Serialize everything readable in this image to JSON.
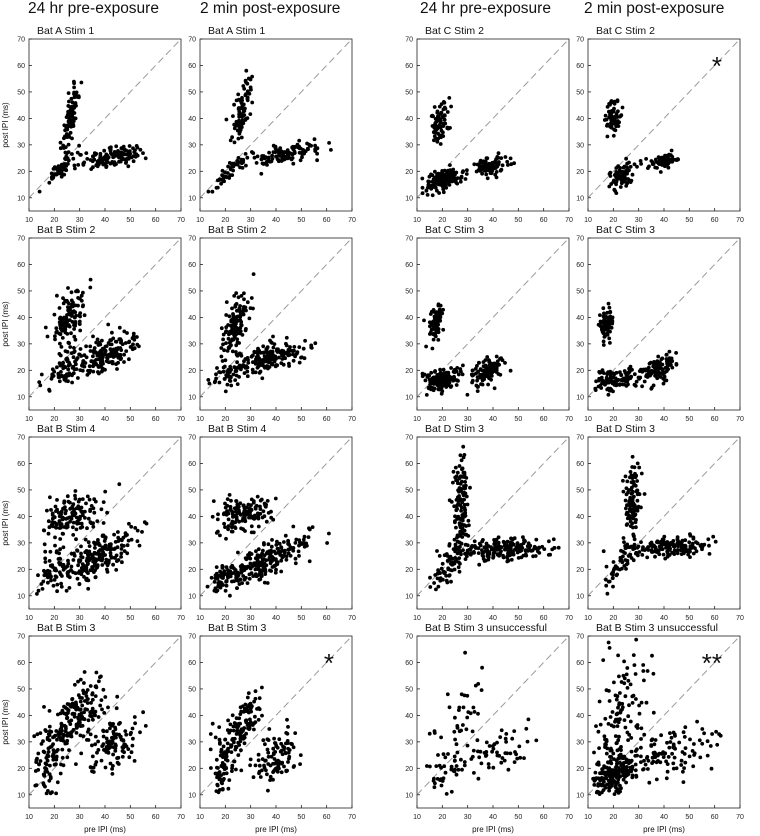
{
  "column_headers": [
    "24 hr pre-exposure",
    "2 min post-exposure",
    "24 hr pre-exposure",
    "2 min post-exposure"
  ],
  "axis_text": {
    "xlabel": "pre IPI (ms)",
    "ylabel": "post IPI (ms)"
  },
  "chart_data": {
    "type": "scatter",
    "xlim": [
      10,
      70
    ],
    "ylim": [
      5,
      70
    ],
    "xticks": [
      10,
      20,
      30,
      40,
      50,
      60,
      70
    ],
    "yticks": [
      10,
      20,
      30,
      40,
      50,
      60,
      70
    ],
    "identity_line": "dashed diagonal y = x",
    "point_color": "#000000",
    "panels": [
      {
        "title": "Bat A  Stim 1",
        "annotation": "",
        "clusters": [
          {
            "n": 95,
            "cx": 26.5,
            "cy": 40,
            "sx": 1.6,
            "sy": 7,
            "rho": 0.8
          },
          {
            "n": 50,
            "cx": 22,
            "cy": 21,
            "sx": 3.5,
            "sy": 3.5,
            "rho": 0.9
          },
          {
            "n": 140,
            "cx": 43,
            "cy": 25.5,
            "sx": 6.5,
            "sy": 2.2,
            "rho": 0.5
          }
        ]
      },
      {
        "title": "Bat A  Stim 1",
        "annotation": "",
        "clusters": [
          {
            "n": 90,
            "cx": 26,
            "cy": 40,
            "sx": 2.0,
            "sy": 7,
            "rho": 0.7
          },
          {
            "n": 45,
            "cx": 22,
            "cy": 20,
            "sx": 3.5,
            "sy": 3.5,
            "rho": 0.9
          },
          {
            "n": 120,
            "cx": 43,
            "cy": 26.5,
            "sx": 7,
            "sy": 2.2,
            "rho": 0.5
          }
        ]
      },
      {
        "title": "Bat C  Stim 2",
        "annotation": "",
        "clusters": [
          {
            "n": 75,
            "cx": 19,
            "cy": 38.5,
            "sx": 1.8,
            "sy": 3.8,
            "rho": 0.3
          },
          {
            "n": 160,
            "cx": 20,
            "cy": 16.5,
            "sx": 4,
            "sy": 2.3,
            "rho": 0.5
          },
          {
            "n": 90,
            "cx": 39,
            "cy": 22,
            "sx": 3.8,
            "sy": 1.8,
            "rho": 0.3
          }
        ]
      },
      {
        "title": "Bat C  Stim 2",
        "annotation": "*",
        "clusters": [
          {
            "n": 60,
            "cx": 20,
            "cy": 40,
            "sx": 1.7,
            "sy": 3.2,
            "rho": 0.2
          },
          {
            "n": 80,
            "cx": 23,
            "cy": 18.5,
            "sx": 2.6,
            "sy": 2.5,
            "rho": 0.4
          },
          {
            "n": 70,
            "cx": 40,
            "cy": 24,
            "sx": 3.2,
            "sy": 1.5,
            "rho": 0.3
          }
        ]
      },
      {
        "title": "Bat B  Stim 2",
        "annotation": "",
        "clusters": [
          {
            "n": 120,
            "cx": 26,
            "cy": 39.5,
            "sx": 3.5,
            "sy": 5.5,
            "rho": 0.6
          },
          {
            "n": 60,
            "cx": 24,
            "cy": 20,
            "sx": 4,
            "sy": 4,
            "rho": 0.5
          },
          {
            "n": 170,
            "cx": 40,
            "cy": 26,
            "sx": 7,
            "sy": 4,
            "rho": 0.6
          }
        ]
      },
      {
        "title": "Bat B  Stim 2",
        "annotation": "",
        "clusters": [
          {
            "n": 120,
            "cx": 23.5,
            "cy": 36,
            "sx": 2.6,
            "sy": 6,
            "rho": 0.6
          },
          {
            "n": 60,
            "cx": 22,
            "cy": 19,
            "sx": 3.5,
            "sy": 3,
            "rho": 0.4
          },
          {
            "n": 150,
            "cx": 38,
            "cy": 25,
            "sx": 6,
            "sy": 3,
            "rho": 0.5
          }
        ]
      },
      {
        "title": "Bat C  Stim 3",
        "annotation": "",
        "clusters": [
          {
            "n": 80,
            "cx": 17.5,
            "cy": 38,
            "sx": 1.4,
            "sy": 3.5,
            "rho": 0.3
          },
          {
            "n": 160,
            "cx": 19,
            "cy": 16.5,
            "sx": 3.8,
            "sy": 2.0,
            "rho": 0.3
          },
          {
            "n": 110,
            "cx": 38,
            "cy": 19.5,
            "sx": 3.2,
            "sy": 2.8,
            "rho": 0.4
          }
        ]
      },
      {
        "title": "Bat C  Stim 3",
        "annotation": "",
        "clusters": [
          {
            "n": 70,
            "cx": 17,
            "cy": 37,
            "sx": 1.4,
            "sy": 3.0,
            "rho": 0.3
          },
          {
            "n": 120,
            "cx": 21,
            "cy": 16.5,
            "sx": 4.5,
            "sy": 2.0,
            "rho": 0.3
          },
          {
            "n": 100,
            "cx": 38,
            "cy": 20,
            "sx": 3.5,
            "sy": 3.0,
            "rho": 0.4
          }
        ]
      },
      {
        "title": "Bat B  Stim 4",
        "annotation": "",
        "clusters": [
          {
            "n": 140,
            "cx": 27,
            "cy": 40,
            "sx": 6.5,
            "sy": 4,
            "rho": 0.4
          },
          {
            "n": 70,
            "cx": 20,
            "cy": 20,
            "sx": 4,
            "sy": 4,
            "rho": 0.5
          },
          {
            "n": 200,
            "cx": 38,
            "cy": 25,
            "sx": 7,
            "sy": 5.5,
            "rho": 0.7
          }
        ]
      },
      {
        "title": "Bat B  Stim 4",
        "annotation": "",
        "clusters": [
          {
            "n": 140,
            "cx": 28,
            "cy": 41,
            "sx": 6.5,
            "sy": 3.5,
            "rho": 0.3
          },
          {
            "n": 60,
            "cx": 19,
            "cy": 17,
            "sx": 3,
            "sy": 3,
            "rho": 0.6
          },
          {
            "n": 220,
            "cx": 36,
            "cy": 23,
            "sx": 8,
            "sy": 5,
            "rho": 0.75
          }
        ]
      },
      {
        "title": "Bat D  Stim 3",
        "annotation": "",
        "clusters": [
          {
            "n": 130,
            "cx": 27.5,
            "cy": 44,
            "sx": 1.5,
            "sy": 10,
            "rho": 0.2
          },
          {
            "n": 60,
            "cx": 22,
            "cy": 20,
            "sx": 3.5,
            "sy": 4,
            "rho": 0.8
          },
          {
            "n": 200,
            "cx": 44,
            "cy": 27.5,
            "sx": 9,
            "sy": 2.0,
            "rho": 0.2
          }
        ]
      },
      {
        "title": "Bat D  Stim 3",
        "annotation": "",
        "clusters": [
          {
            "n": 110,
            "cx": 27.5,
            "cy": 46,
            "sx": 1.6,
            "sy": 8,
            "rho": 0.2
          },
          {
            "n": 40,
            "cx": 22,
            "cy": 21,
            "sx": 3,
            "sy": 4,
            "rho": 0.8
          },
          {
            "n": 160,
            "cx": 42,
            "cy": 28.5,
            "sx": 8,
            "sy": 2.2,
            "rho": 0.2
          }
        ]
      },
      {
        "title": "Bat B  Stim 3",
        "annotation": "",
        "clusters": [
          {
            "n": 140,
            "cx": 30,
            "cy": 42,
            "sx": 5,
            "sy": 6,
            "rho": 0.5
          },
          {
            "n": 120,
            "cx": 19,
            "cy": 25,
            "sx": 5,
            "sy": 8,
            "rho": 0.4
          },
          {
            "n": 110,
            "cx": 43,
            "cy": 30,
            "sx": 5,
            "sy": 5,
            "rho": 0.3
          }
        ]
      },
      {
        "title": "Bat B  Stim 3",
        "annotation": "*",
        "clusters": [
          {
            "n": 110,
            "cx": 26,
            "cy": 36,
            "sx": 4,
            "sy": 6,
            "rho": 0.6
          },
          {
            "n": 70,
            "cx": 20,
            "cy": 22,
            "sx": 3,
            "sy": 5,
            "rho": 0.5
          },
          {
            "n": 100,
            "cx": 40,
            "cy": 24,
            "sx": 4,
            "sy": 4.5,
            "rho": 0.3
          }
        ]
      },
      {
        "title": "Bat B  Stim 3 unsuccessful",
        "annotation": "",
        "clusters": [
          {
            "n": 35,
            "cx": 28,
            "cy": 40,
            "sx": 5,
            "sy": 7,
            "rho": 0.4
          },
          {
            "n": 45,
            "cx": 22,
            "cy": 20,
            "sx": 5,
            "sy": 5,
            "rho": 0.6
          },
          {
            "n": 50,
            "cx": 42,
            "cy": 26,
            "sx": 7,
            "sy": 5,
            "rho": 0.5
          }
        ]
      },
      {
        "title": "Bat B  Stim 3 unsuccessful",
        "annotation": "**",
        "clusters": [
          {
            "n": 130,
            "cx": 22,
            "cy": 40,
            "sx": 6,
            "sy": 14,
            "rho": 0.3
          },
          {
            "n": 160,
            "cx": 20,
            "cy": 18,
            "sx": 5,
            "sy": 3.5,
            "rho": 0.6
          },
          {
            "n": 120,
            "cx": 40,
            "cy": 25,
            "sx": 11,
            "sy": 5,
            "rho": 0.5
          }
        ]
      }
    ]
  }
}
